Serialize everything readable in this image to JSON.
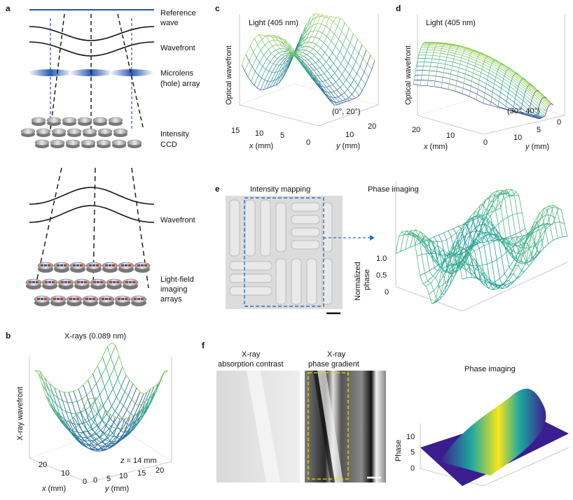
{
  "panels": {
    "a": {
      "label": "a",
      "top_labels": [
        "Reference",
        "wave",
        "Wavefront",
        "Microlens",
        "(hole) array",
        "Intensity",
        "CCD"
      ],
      "bottom_labels": [
        "Wavefront",
        "Light-field",
        "imaging",
        "arrays"
      ]
    },
    "b": {
      "label": "b",
      "title": "X-rays (0.089 nm)",
      "zlabel": "X-ray wavefront",
      "annotation_var": "z",
      "annotation_val": " = 14 mm",
      "xlabel_var": "x",
      "xlabel_unit": " (mm)",
      "ylabel_var": "y",
      "ylabel_unit": " (mm)",
      "x_ticks": [
        "20",
        "10",
        "0"
      ],
      "y_ticks": [
        "0",
        "5",
        "10",
        "15",
        "20"
      ]
    },
    "c": {
      "label": "c",
      "title": "Light (405 nm)",
      "zlabel": "Optical wavefront",
      "angle": "(0°, 20°)",
      "xlabel_var": "x",
      "xlabel_unit": " (mm)",
      "ylabel_var": "y",
      "ylabel_unit": " (mm)",
      "x_ticks": [
        "15",
        "10",
        "5",
        "0"
      ],
      "y_ticks": [
        "10",
        "20"
      ]
    },
    "d": {
      "label": "d",
      "title": "Light (405 nm)",
      "zlabel": "Optical wavefront",
      "angle": "(30°, 40°)",
      "xlabel_var": "x",
      "xlabel_unit": " (mm)",
      "ylabel_var": "y",
      "ylabel_unit": " (mm)",
      "x_ticks": [
        "20",
        "10",
        "0"
      ],
      "y_ticks": [
        "0",
        "5",
        "10"
      ]
    },
    "e": {
      "label": "e",
      "left_title": "Intensity mapping",
      "right_title": "Phase imaging",
      "zlabel_line1": "Normalized",
      "zlabel_line2": "phase",
      "z_ticks": [
        "1.0",
        "0.5",
        "0"
      ]
    },
    "f": {
      "label": "f",
      "img1_title_line1": "X-ray",
      "img1_title_line2": "absorption contrast",
      "img2_title_line1": "X-ray",
      "img2_title_line2": "phase gradient",
      "right_title": "Phase imaging",
      "zlabel": "Phase",
      "z_ticks": [
        "10",
        "5",
        "0"
      ]
    }
  },
  "colors": {
    "reference_wave": "#2b4fb3",
    "surface_low": "#3b1d8f",
    "surface_mid": "#1fa8a0",
    "surface_high": "#f6e51c",
    "dashed_box": "#2d6fb8",
    "f_dashed_box": "#f0e000"
  }
}
